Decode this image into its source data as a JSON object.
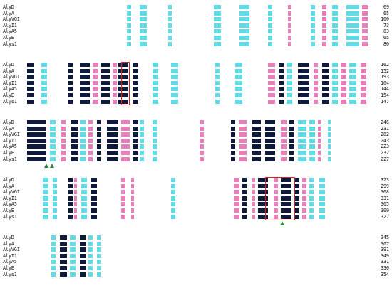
{
  "sequences": [
    "AlyD",
    "AlyA",
    "AlyVGI",
    "AlyI1",
    "AlyA5",
    "AlyE",
    "Alys1"
  ],
  "blocks": [
    {
      "end_positions": [
        "69",
        "65",
        "100",
        "73",
        "83",
        "65",
        "80"
      ],
      "residues": [
        "",
        "",
        "",
        "",
        "",
        "",
        ""
      ]
    },
    {
      "end_positions": [
        "162",
        "152",
        "193",
        "164",
        "144",
        "154",
        "147"
      ],
      "residues": [
        "",
        "",
        "",
        "",
        "",
        "",
        ""
      ]
    },
    {
      "end_positions": [
        "246",
        "231",
        "282",
        "243",
        "223",
        "232",
        "227"
      ],
      "residues": [
        "",
        "",
        "",
        "",
        "",
        "",
        ""
      ]
    },
    {
      "end_positions": [
        "323",
        "299",
        "368",
        "331",
        "305",
        "309",
        "327"
      ],
      "residues": [
        "",
        "",
        "",
        "",
        "",
        "",
        ""
      ]
    },
    {
      "end_positions": [
        "345",
        "307",
        "391",
        "349",
        "331",
        "330",
        "354"
      ],
      "residues": [
        "",
        "",
        "",
        "",
        "",
        "",
        ""
      ]
    }
  ],
  "colors": {
    "identical": "#101a3c",
    "conserved_pink": "#e680b8",
    "similar_cyan": "#63dbe6",
    "motif_box": "#d8261f",
    "marker": "#2d8a3c"
  }
}
